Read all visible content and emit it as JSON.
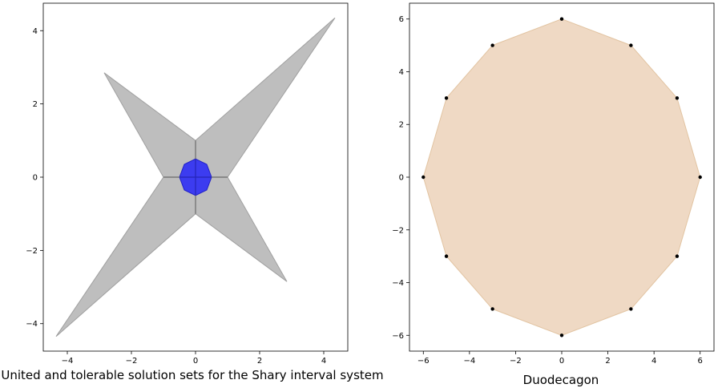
{
  "chart_data": [
    {
      "type": "polygon",
      "title": "",
      "xlabel": "United and tolerable solution sets for the Shary interval system",
      "ylabel": "",
      "xlim": [
        -4.75,
        4.75
      ],
      "ylim": [
        -4.75,
        4.75
      ],
      "xticks": [
        -4,
        -2,
        0,
        2,
        4
      ],
      "yticks": [
        -4,
        -2,
        0,
        2,
        4
      ],
      "grid": false,
      "series": [
        {
          "role": "united-set",
          "color": "#bebebe",
          "edge_color": "#a0a0a0",
          "points": [
            [
              0,
              1
            ],
            [
              4.35,
              4.35
            ],
            [
              1,
              0
            ],
            [
              2.85,
              -2.85
            ],
            [
              0,
              -1
            ],
            [
              -4.35,
              -4.35
            ],
            [
              -1,
              0
            ],
            [
              -2.85,
              2.85
            ]
          ]
        },
        {
          "role": "tolerable-set",
          "color": "#3c3cf0",
          "edge_color": "#2020c8",
          "points": [
            [
              0,
              0.5
            ],
            [
              0.35,
              0.35
            ],
            [
              0.5,
              0
            ],
            [
              0.35,
              -0.35
            ],
            [
              0,
              -0.5
            ],
            [
              -0.35,
              -0.35
            ],
            [
              -0.5,
              0
            ],
            [
              -0.35,
              0.35
            ]
          ]
        }
      ],
      "lines": [
        {
          "color": "#6a6a6a",
          "points": [
            [
              0,
              1
            ],
            [
              0,
              -1
            ]
          ]
        },
        {
          "color": "#6a6a6a",
          "points": [
            [
              -1,
              0
            ],
            [
              1,
              0
            ]
          ]
        },
        {
          "color": "#2020c8",
          "points": [
            [
              0,
              0.5
            ],
            [
              0,
              -0.5
            ]
          ]
        },
        {
          "color": "#2020c8",
          "points": [
            [
              -0.5,
              0
            ],
            [
              0.5,
              0
            ]
          ]
        }
      ]
    },
    {
      "type": "polygon",
      "title": "",
      "xlabel": "Duodecagon",
      "ylabel": "",
      "xlim": [
        -6.6,
        6.6
      ],
      "ylim": [
        -6.6,
        6.6
      ],
      "xticks": [
        -6,
        -4,
        -2,
        0,
        2,
        4,
        6
      ],
      "yticks": [
        -6,
        -4,
        -2,
        0,
        2,
        4,
        6
      ],
      "grid": false,
      "series": [
        {
          "role": "duodecagon",
          "color": "#efd9c4",
          "edge_color": "#e2c4a2",
          "points": [
            [
              0,
              6
            ],
            [
              3,
              5
            ],
            [
              5,
              3
            ],
            [
              6,
              0
            ],
            [
              5,
              -3
            ],
            [
              3,
              -5
            ],
            [
              0,
              -6
            ],
            [
              -3,
              -5
            ],
            [
              -5,
              -3
            ],
            [
              -6,
              0
            ],
            [
              -5,
              3
            ],
            [
              -3,
              5
            ]
          ]
        }
      ],
      "markers": {
        "color": "#000000",
        "points": [
          [
            0,
            6
          ],
          [
            3,
            5
          ],
          [
            5,
            3
          ],
          [
            6,
            0
          ],
          [
            5,
            -3
          ],
          [
            3,
            -5
          ],
          [
            0,
            -6
          ],
          [
            -3,
            -5
          ],
          [
            -5,
            -3
          ],
          [
            -6,
            0
          ],
          [
            -5,
            3
          ],
          [
            -3,
            5
          ]
        ]
      }
    }
  ]
}
